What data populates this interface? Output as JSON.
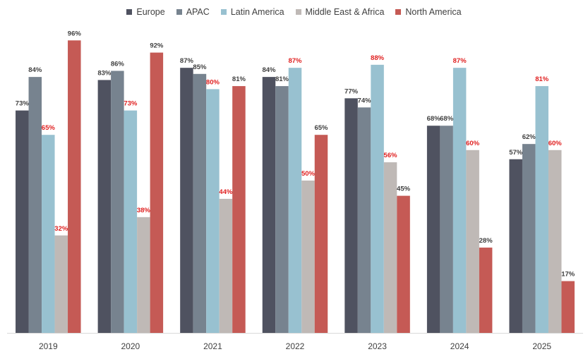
{
  "chart_data": {
    "type": "bar",
    "title": "",
    "xlabel": "",
    "ylabel": "",
    "ylim": [
      0,
      100
    ],
    "grid": false,
    "legend": "top-center",
    "categories": [
      "2019",
      "2020",
      "2021",
      "2022",
      "2023",
      "2024",
      "2025"
    ],
    "series": [
      {
        "name": "Europe",
        "color": "#4f5260",
        "values": [
          73,
          83,
          87,
          84,
          77,
          68,
          57
        ],
        "labels": [
          "73%",
          "83%",
          "87%",
          "84%",
          "77%",
          "68%",
          "57%"
        ],
        "label_colors": [
          "#404040",
          "#404040",
          "#404040",
          "#404040",
          "#404040",
          "#404040",
          "#404040"
        ]
      },
      {
        "name": "APAC",
        "color": "#77838f",
        "values": [
          84,
          86,
          85,
          81,
          74,
          68,
          62
        ],
        "labels": [
          "84%",
          "86%",
          "85%",
          "81%",
          "74%",
          "68%",
          "62%"
        ],
        "label_colors": [
          "#404040",
          "#404040",
          "#404040",
          "#404040",
          "#404040",
          "#404040",
          "#404040"
        ]
      },
      {
        "name": "Latin America",
        "color": "#98c1d0",
        "values": [
          65,
          73,
          80,
          87,
          88,
          87,
          81
        ],
        "labels": [
          "65%",
          "73%",
          "80%",
          "87%",
          "88%",
          "87%",
          "81%"
        ],
        "label_colors": [
          "#e02020",
          "#e02020",
          "#e02020",
          "#e02020",
          "#e02020",
          "#e02020",
          "#e02020"
        ]
      },
      {
        "name": "Middle East & Africa",
        "color": "#bfb9b6",
        "values": [
          32,
          38,
          44,
          50,
          56,
          60,
          60
        ],
        "labels": [
          "32%",
          "38%",
          "44%",
          "50%",
          "56%",
          "60%",
          "60%"
        ],
        "label_colors": [
          "#e02020",
          "#e02020",
          "#e02020",
          "#e02020",
          "#e02020",
          "#e02020",
          "#e02020"
        ]
      },
      {
        "name": "North America",
        "color": "#c55a55",
        "values": [
          96,
          92,
          81,
          65,
          45,
          28,
          17
        ],
        "labels": [
          "96%",
          "92%",
          "81%",
          "65%",
          "45%",
          "28%",
          "17%"
        ],
        "label_colors": [
          "#404040",
          "#404040",
          "#404040",
          "#404040",
          "#404040",
          "#404040",
          "#404040"
        ]
      }
    ]
  }
}
